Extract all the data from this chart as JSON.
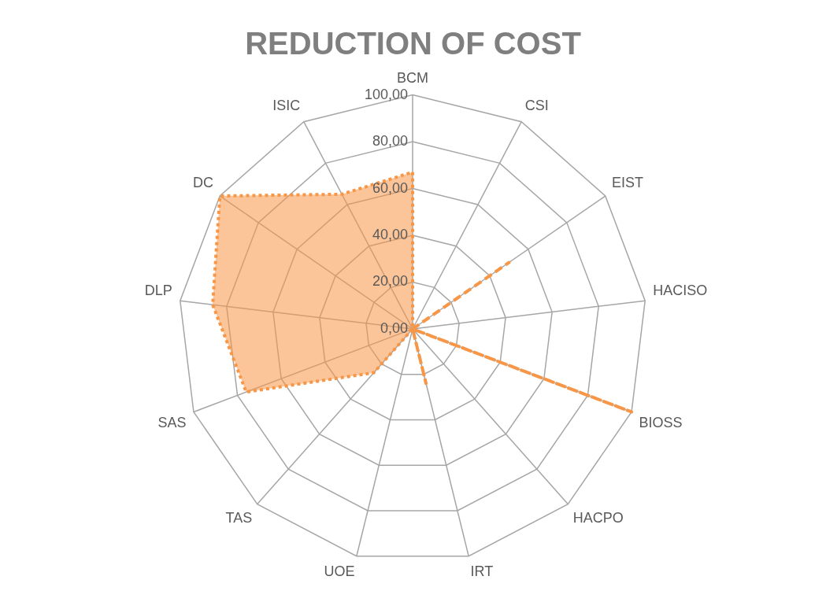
{
  "chart_data": {
    "type": "radar",
    "title": "REDUCTION OF COST",
    "categories": [
      "BCM",
      "CSI",
      "EIST",
      "HACISO",
      "BIOSS",
      "HACPO",
      "IRT",
      "UOE",
      "TAS",
      "SAS",
      "DLP",
      "DC",
      "ISIC"
    ],
    "series": [
      {
        "type": "area",
        "color": "#f79646",
        "line_style": "dotted",
        "values": [
          67,
          0,
          0,
          0,
          0,
          0,
          0,
          0,
          25,
          76,
          86,
          100,
          65
        ]
      },
      {
        "color": "#f79646",
        "line_style": "dashed",
        "values": [
          0,
          0,
          50,
          0,
          100,
          0,
          24,
          0,
          0,
          0,
          0,
          0,
          0
        ]
      }
    ],
    "ylim": [
      0,
      100
    ],
    "yticks": [
      {
        "value": 0,
        "label": "0,00"
      },
      {
        "value": 20,
        "label": "20,00"
      },
      {
        "value": 40,
        "label": "40,00"
      },
      {
        "value": 60,
        "label": "60,00"
      },
      {
        "value": 80,
        "label": "80,00"
      },
      {
        "value": 100,
        "label": "100,00"
      }
    ],
    "grid": true,
    "legend": false,
    "marker": "none"
  }
}
